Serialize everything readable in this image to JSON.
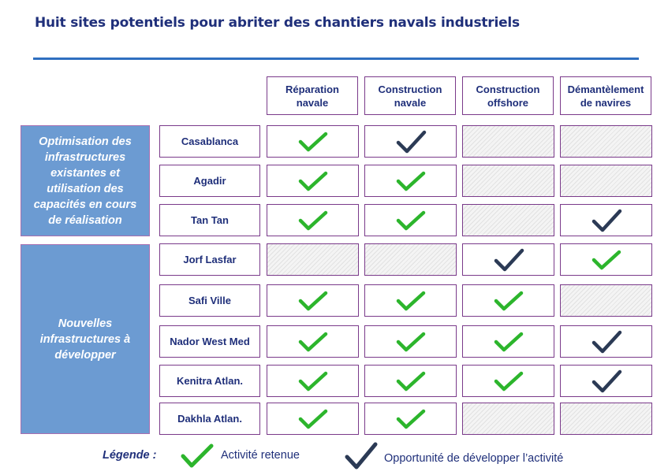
{
  "title": "Huit sites potentiels pour abriter des chantiers navals industriels",
  "columns": [
    {
      "line1": "Réparation",
      "line2": "navale"
    },
    {
      "line1": "Construction",
      "line2": "navale"
    },
    {
      "line1": "Construction",
      "line2": "offshore"
    },
    {
      "line1": "Démantèlement",
      "line2": "de navires"
    }
  ],
  "groups": [
    {
      "label": "Optimisation des infrastructures existantes et utilisation des capacités en cours de réalisation"
    },
    {
      "label": "Nouvelles infrastructures à développer"
    }
  ],
  "rows": [
    {
      "site": "Casablanca",
      "cells": [
        "green",
        "dark",
        "none",
        "none"
      ]
    },
    {
      "site": "Agadir",
      "cells": [
        "green",
        "green",
        "none",
        "none"
      ]
    },
    {
      "site": "Tan Tan",
      "cells": [
        "green",
        "green",
        "none",
        "dark"
      ]
    },
    {
      "site": "Jorf Lasfar",
      "cells": [
        "none",
        "none",
        "dark",
        "green"
      ]
    },
    {
      "site": "Safi Ville",
      "cells": [
        "green",
        "green",
        "green",
        "none"
      ]
    },
    {
      "site": "Nador West Med",
      "cells": [
        "green",
        "green",
        "green",
        "dark"
      ]
    },
    {
      "site": "Kenitra Atlan.",
      "cells": [
        "green",
        "green",
        "green",
        "dark"
      ]
    },
    {
      "site": "Dakhla Atlan.",
      "cells": [
        "green",
        "green",
        "none",
        "none"
      ]
    }
  ],
  "legend": {
    "label": "Légende :",
    "retained": "Activité retenue",
    "opportunity": "Opportunité de développer l’activité"
  },
  "colors": {
    "green_check": "#2cb52c",
    "dark_check": "#2b3a55"
  }
}
